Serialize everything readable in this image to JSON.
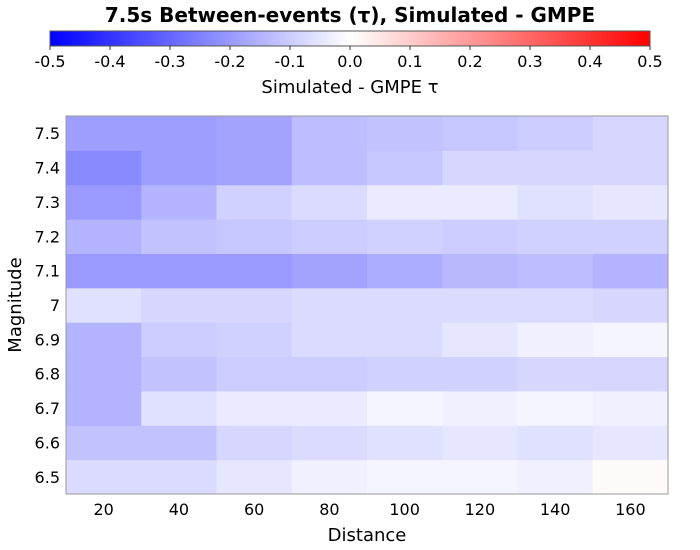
{
  "chart_data": {
    "type": "heatmap",
    "title": "7.5s Between-events (τ), Simulated - GMPE",
    "xlabel": "Distance",
    "ylabel": "Magnitude",
    "x": [
      20,
      40,
      60,
      80,
      100,
      120,
      140,
      160
    ],
    "x_tick_labels": [
      "20",
      "40",
      "60",
      "80",
      "100",
      "120",
      "140",
      "160"
    ],
    "y": [
      6.5,
      6.6,
      6.7,
      6.8,
      6.9,
      7.0,
      7.1,
      7.2,
      7.3,
      7.4,
      7.5
    ],
    "y_tick_labels": [
      "6.5",
      "6.6",
      "6.7",
      "6.8",
      "6.9",
      "7",
      "7.1",
      "7.2",
      "7.3",
      "7.4",
      "7.5"
    ],
    "colorbar": {
      "label": "Simulated - GMPE τ",
      "range": [
        -0.5,
        0.5
      ],
      "ticks": [
        -0.5,
        -0.4,
        -0.3,
        -0.2,
        -0.1,
        0.0,
        0.1,
        0.2,
        0.3,
        0.4,
        0.5
      ],
      "tick_labels": [
        "-0.5",
        "-0.4",
        "-0.3",
        "-0.2",
        "-0.1",
        "0.0",
        "0.1",
        "0.2",
        "0.3",
        "0.4",
        "0.5"
      ],
      "colormap": [
        "#0000ff",
        "#ffffff",
        "#ff0000"
      ]
    },
    "values": [
      [
        -0.07,
        -0.07,
        -0.05,
        -0.03,
        -0.02,
        -0.02,
        -0.03,
        0.01
      ],
      [
        -0.12,
        -0.12,
        -0.08,
        -0.07,
        -0.06,
        -0.05,
        -0.06,
        -0.05
      ],
      [
        -0.15,
        -0.06,
        -0.04,
        -0.04,
        -0.02,
        -0.03,
        -0.02,
        -0.03
      ],
      [
        -0.15,
        -0.12,
        -0.1,
        -0.1,
        -0.09,
        -0.09,
        -0.08,
        -0.08
      ],
      [
        -0.15,
        -0.1,
        -0.09,
        -0.07,
        -0.07,
        -0.05,
        -0.03,
        -0.02
      ],
      [
        -0.06,
        -0.08,
        -0.08,
        -0.07,
        -0.07,
        -0.07,
        -0.07,
        -0.08
      ],
      [
        -0.2,
        -0.2,
        -0.2,
        -0.18,
        -0.16,
        -0.14,
        -0.13,
        -0.15
      ],
      [
        -0.15,
        -0.12,
        -0.11,
        -0.1,
        -0.09,
        -0.1,
        -0.09,
        -0.09
      ],
      [
        -0.2,
        -0.15,
        -0.09,
        -0.07,
        -0.04,
        -0.04,
        -0.06,
        -0.05
      ],
      [
        -0.23,
        -0.19,
        -0.18,
        -0.13,
        -0.11,
        -0.08,
        -0.08,
        -0.08
      ],
      [
        -0.19,
        -0.19,
        -0.18,
        -0.13,
        -0.12,
        -0.11,
        -0.1,
        -0.08
      ]
    ]
  }
}
